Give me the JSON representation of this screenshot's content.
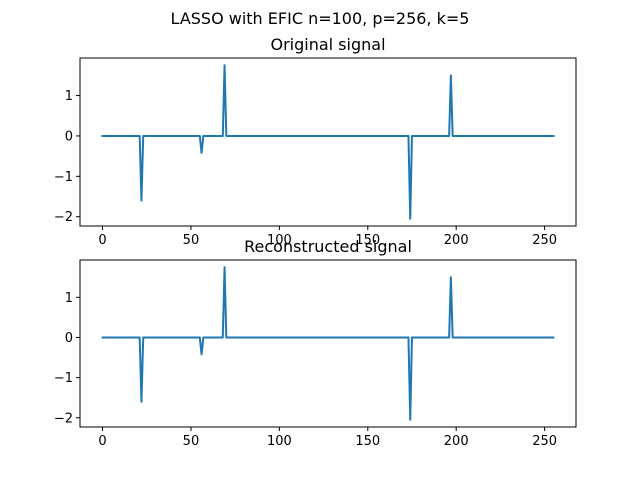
{
  "figure": {
    "suptitle": "LASSO with EFIC n=100, p=256, k=5"
  },
  "colors": {
    "series": "#1f77b4",
    "background": "#ffffff",
    "axes": "#000000"
  },
  "chart_data": [
    {
      "type": "line",
      "title": "Original signal",
      "xlabel": "",
      "ylabel": "",
      "xlim": [
        -12.75,
        267.75
      ],
      "ylim": [
        -2.23,
        1.93
      ],
      "xticks": [
        0,
        50,
        100,
        150,
        200,
        250
      ],
      "yticks": [
        -2,
        -1,
        0,
        1
      ],
      "grid": false,
      "series": [
        {
          "x": [
            0,
            21,
            22,
            23,
            55,
            56,
            57,
            68,
            69,
            70,
            173,
            174,
            175,
            196,
            197,
            198,
            255
          ],
          "y": [
            0,
            0,
            -1.6,
            0,
            0,
            -0.42,
            0,
            0,
            1.75,
            0,
            0,
            -2.05,
            0,
            0,
            1.5,
            0,
            0
          ]
        }
      ]
    },
    {
      "type": "line",
      "title": "Reconstructed signal",
      "xlabel": "",
      "ylabel": "",
      "xlim": [
        -12.75,
        267.75
      ],
      "ylim": [
        -2.23,
        1.93
      ],
      "xticks": [
        0,
        50,
        100,
        150,
        200,
        250
      ],
      "yticks": [
        -2,
        -1,
        0,
        1
      ],
      "grid": false,
      "series": [
        {
          "x": [
            0,
            21,
            22,
            23,
            55,
            56,
            57,
            68,
            69,
            70,
            173,
            174,
            175,
            196,
            197,
            198,
            255
          ],
          "y": [
            0,
            0,
            -1.6,
            0,
            0,
            -0.42,
            0,
            0,
            1.75,
            0,
            0,
            -2.05,
            0,
            0,
            1.5,
            0,
            0
          ]
        }
      ]
    }
  ]
}
